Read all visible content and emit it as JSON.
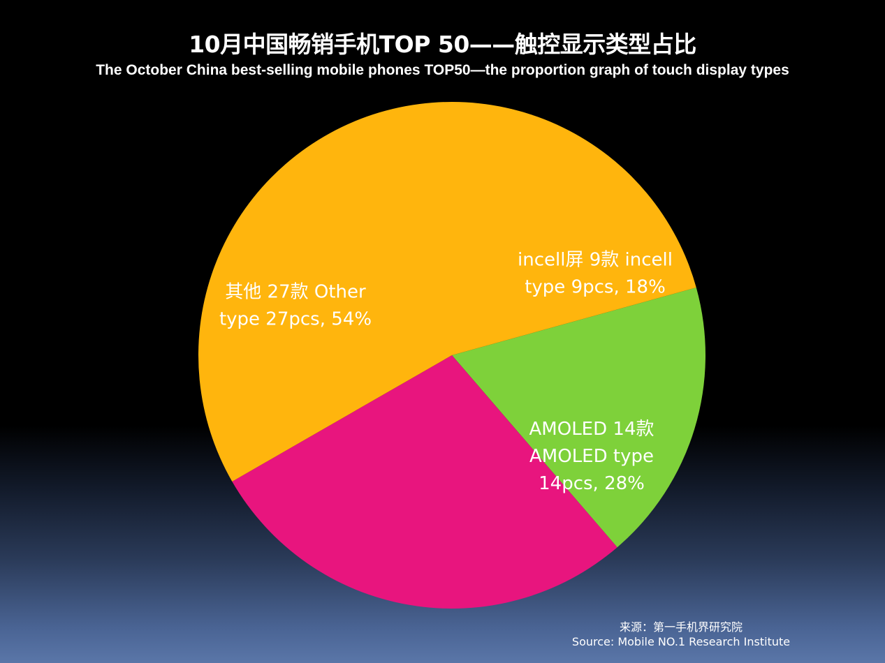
{
  "title_zh": "10月中国畅销手机TOP 50——触控显示类型占比",
  "title_en": "The October China best-selling mobile phones TOP50—the proportion graph of touch display types",
  "chart_data": {
    "type": "pie",
    "title": "10月中国畅销手机TOP 50——触控显示类型占比",
    "subtitle": "The October China best-selling mobile phones TOP50—the proportion graph of touch display types",
    "slices": [
      {
        "name": "incell",
        "count": 9,
        "percent": 18,
        "color": "#7ed13a",
        "label_lines": [
          "incell屏 9款 incell",
          "type 9pcs,  18%"
        ]
      },
      {
        "name": "AMOLED",
        "count": 14,
        "percent": 28,
        "color": "#e8157e",
        "label_lines": [
          "AMOLED 14款",
          "AMOLED type",
          "14pcs,  28%"
        ]
      },
      {
        "name": "Other",
        "count": 27,
        "percent": 54,
        "color": "#ffb50d",
        "label_lines": [
          "其他 27款 Other",
          "type 27pcs,  54%"
        ]
      }
    ]
  },
  "source": {
    "zh": "来源：第一手机界研究院",
    "en": "Source: Mobile NO.1 Research Institute"
  }
}
